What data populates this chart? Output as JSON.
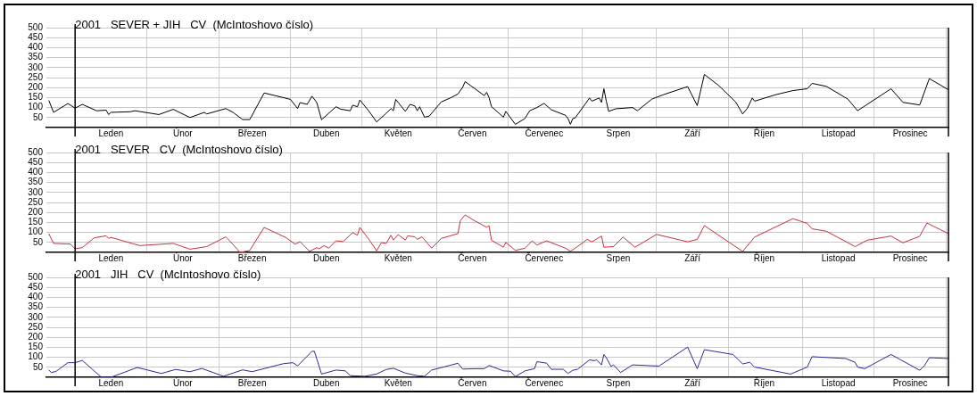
{
  "chart_data": [
    {
      "type": "line",
      "title": "2001   SEVER + JIH   CV  (McIntoshovo číslo)",
      "ylim": [
        0,
        500
      ],
      "yticks": [
        50,
        100,
        150,
        200,
        250,
        300,
        350,
        400,
        450,
        500
      ],
      "grid": true,
      "legend": false,
      "categories": [
        null,
        null,
        null,
        null,
        null,
        null,
        null,
        null,
        null,
        null,
        null,
        null,
        null,
        null,
        null,
        null,
        null,
        null,
        null,
        null,
        null,
        null,
        null,
        null,
        null,
        null,
        null,
        "Leden",
        null,
        null,
        null,
        null,
        null,
        null,
        null,
        null,
        null,
        null,
        null,
        null,
        null,
        null,
        null,
        null,
        null,
        null,
        null,
        null,
        null,
        null,
        null,
        null,
        null,
        null,
        null,
        null,
        null,
        "Únor",
        null,
        null,
        null,
        null,
        null,
        null,
        null,
        null,
        null,
        null,
        null,
        null,
        null,
        null,
        null,
        null,
        null,
        null,
        null,
        null,
        null,
        null,
        null,
        null,
        null,
        null,
        null,
        null,
        "Březen",
        null,
        null,
        null,
        null,
        null,
        null,
        null,
        null,
        null,
        null,
        null,
        null,
        null,
        null,
        null,
        null,
        null,
        null,
        null,
        null,
        null,
        null,
        null,
        null,
        null,
        null,
        null,
        null,
        null,
        null,
        "Duben",
        null,
        null,
        null,
        null,
        null,
        null,
        null,
        null,
        null,
        null,
        null,
        null,
        null,
        null,
        null,
        null,
        null,
        null,
        null,
        null,
        null,
        null,
        null,
        null,
        null,
        null,
        null,
        null,
        null,
        "Květen",
        null,
        null,
        null,
        null,
        null,
        null,
        null,
        null,
        null,
        null,
        null,
        null,
        null,
        null,
        null,
        null,
        null,
        null,
        null,
        null,
        null,
        null,
        null,
        null,
        null,
        null,
        null,
        null,
        null,
        null,
        "Červen",
        null,
        null,
        null,
        null,
        null,
        null,
        null,
        null,
        null,
        null,
        null,
        null,
        null,
        null,
        null,
        null,
        null,
        null,
        null,
        null,
        null,
        null,
        null,
        null,
        null,
        null,
        null,
        null,
        null,
        "Červenec",
        null,
        null,
        null,
        null,
        null,
        null,
        null,
        null,
        null,
        null,
        null,
        null,
        null,
        null,
        null,
        null,
        null,
        null,
        null,
        null,
        null,
        null,
        null,
        null,
        null,
        null,
        null,
        null,
        null,
        null,
        "Srpen",
        null,
        null,
        null,
        null,
        null,
        null,
        null,
        null,
        null,
        null,
        null,
        null,
        null,
        null,
        null,
        null,
        null,
        null,
        null,
        null,
        null,
        null,
        null,
        null,
        null,
        null,
        null,
        null,
        null,
        null,
        "Září",
        null,
        null,
        null,
        null,
        null,
        null,
        null,
        null,
        null,
        null,
        null,
        null,
        null,
        null,
        null,
        null,
        null,
        null,
        null,
        null,
        null,
        null,
        null,
        null,
        null,
        null,
        null,
        null,
        null,
        "Říjen",
        null,
        null,
        null,
        null,
        null,
        null,
        null,
        null,
        null,
        null,
        null,
        null,
        null,
        null,
        null,
        null,
        null,
        null,
        null,
        null,
        null,
        null,
        null,
        null,
        null,
        null,
        null,
        null,
        null,
        null,
        "Listopad",
        null,
        null,
        null,
        null,
        null,
        null,
        null,
        null,
        null,
        null,
        null,
        null,
        null,
        null,
        null,
        null,
        null,
        null,
        null,
        null,
        null,
        null,
        null,
        null,
        null,
        null,
        null,
        null,
        null,
        "Prosinec",
        null,
        null,
        null,
        null,
        null,
        null,
        null,
        null,
        null,
        null,
        null,
        null,
        null,
        null,
        null,
        null
      ],
      "series": [
        {
          "color": "#000000",
          "values": [
            null,
            136,
            null,
            76,
            null,
            null,
            null,
            null,
            null,
            120,
            null,
            null,
            97,
            null,
            null,
            116,
            null,
            null,
            null,
            null,
            null,
            84,
            null,
            null,
            null,
            87,
            65,
            76,
            null,
            null,
            null,
            null,
            null,
            null,
            null,
            79,
            null,
            84,
            null,
            null,
            null,
            null,
            null,
            null,
            null,
            null,
            null,
            65,
            null,
            null,
            null,
            null,
            null,
            91,
            null,
            null,
            null,
            null,
            null,
            null,
            50,
            null,
            null,
            null,
            null,
            null,
            76,
            68,
            null,
            null,
            null,
            null,
            null,
            null,
            null,
            95,
            null,
            null,
            76,
            null,
            null,
            null,
            40,
            null,
            null,
            40,
            null,
            null,
            null,
            null,
            null,
            173,
            null,
            null,
            null,
            null,
            null,
            null,
            null,
            null,
            null,
            null,
            141,
            null,
            null,
            95,
            125,
            null,
            null,
            116,
            null,
            157,
            null,
            125,
            null,
            39,
            null,
            null,
            null,
            null,
            null,
            104,
            null,
            92,
            null,
            null,
            null,
            84,
            112,
            null,
            104,
            138,
            null,
            null,
            null,
            79,
            null,
            null,
            28,
            null,
            null,
            null,
            71,
            null,
            95,
            84,
            141,
            null,
            null,
            null,
            81,
            null,
            116,
            null,
            108,
            84,
            104,
            null,
            52,
            null,
            57,
            null,
            null,
            null,
            null,
            128,
            null,
            null,
            null,
            149,
            null,
            null,
            168,
            null,
            202,
            230,
            null,
            null,
            null,
            null,
            null,
            null,
            null,
            160,
            176,
            150,
            105,
            null,
            null,
            null,
            null,
            52,
            81,
            null,
            null,
            null,
            16,
            null,
            null,
            null,
            45,
            null,
            84,
            null,
            null,
            100,
            null,
            null,
            121,
            null,
            null,
            89,
            null,
            null,
            null,
            null,
            null,
            61,
            45,
            16,
            45,
            48,
            null,
            null,
            null,
            null,
            null,
            148,
            132,
            null,
            null,
            148,
            126,
            194,
            132,
            81,
            null,
            null,
            94,
            null,
            null,
            null,
            null,
            null,
            null,
            100,
            null,
            84,
            null,
            null,
            null,
            null,
            null,
            142,
            null,
            null,
            null,
            null,
            165,
            null,
            null,
            null,
            null,
            null,
            null,
            null,
            null,
            null,
            205,
            null,
            null,
            null,
            110,
            null,
            null,
            266,
            null,
            null,
            null,
            null,
            null,
            210,
            null,
            null,
            null,
            null,
            null,
            null,
            129,
            null,
            null,
            68,
            null,
            97,
            null,
            148,
            132,
            null,
            null,
            null,
            null,
            null,
            null,
            null,
            null,
            165,
            null,
            null,
            null,
            null,
            null,
            null,
            185,
            null,
            null,
            null,
            null,
            null,
            194,
            null,
            221,
            null,
            null,
            null,
            null,
            null,
            206,
            null,
            null,
            null,
            null,
            null,
            null,
            null,
            null,
            142,
            null,
            null,
            null,
            84,
            null,
            null,
            null,
            null,
            null,
            null,
            null,
            null,
            null,
            null,
            null,
            null,
            null,
            194,
            null,
            null,
            null,
            null,
            126,
            null,
            null,
            null,
            null,
            null,
            null,
            113,
            null,
            null,
            null,
            245,
            null,
            null,
            null,
            null,
            null,
            null,
            null,
            189
          ]
        }
      ]
    },
    {
      "type": "line",
      "title": "2001   SEVER   CV  (McIntoshovo číslo)",
      "ylim": [
        0,
        500
      ],
      "yticks": [
        50,
        100,
        150,
        200,
        250,
        300,
        350,
        400,
        450,
        500
      ],
      "grid": true,
      "legend": false,
      "categories": [
        null,
        null,
        null,
        null,
        null,
        null,
        null,
        null,
        null,
        null,
        null,
        null,
        null,
        null,
        null,
        null,
        null,
        null,
        null,
        null,
        null,
        null,
        null,
        null,
        null,
        null,
        null,
        "Leden",
        null,
        null,
        null,
        null,
        null,
        null,
        null,
        null,
        null,
        null,
        null,
        null,
        null,
        null,
        null,
        null,
        null,
        null,
        null,
        null,
        null,
        null,
        null,
        null,
        null,
        null,
        null,
        null,
        null,
        "Únor",
        null,
        null,
        null,
        null,
        null,
        null,
        null,
        null,
        null,
        null,
        null,
        null,
        null,
        null,
        null,
        null,
        null,
        null,
        null,
        null,
        null,
        null,
        null,
        null,
        null,
        null,
        null,
        null,
        "Březen",
        null,
        null,
        null,
        null,
        null,
        null,
        null,
        null,
        null,
        null,
        null,
        null,
        null,
        null,
        null,
        null,
        null,
        null,
        null,
        null,
        null,
        null,
        null,
        null,
        null,
        null,
        null,
        null,
        null,
        null,
        "Duben",
        null,
        null,
        null,
        null,
        null,
        null,
        null,
        null,
        null,
        null,
        null,
        null,
        null,
        null,
        null,
        null,
        null,
        null,
        null,
        null,
        null,
        null,
        null,
        null,
        null,
        null,
        null,
        null,
        null,
        "Květen",
        null,
        null,
        null,
        null,
        null,
        null,
        null,
        null,
        null,
        null,
        null,
        null,
        null,
        null,
        null,
        null,
        null,
        null,
        null,
        null,
        null,
        null,
        null,
        null,
        null,
        null,
        null,
        null,
        null,
        null,
        "Červen",
        null,
        null,
        null,
        null,
        null,
        null,
        null,
        null,
        null,
        null,
        null,
        null,
        null,
        null,
        null,
        null,
        null,
        null,
        null,
        null,
        null,
        null,
        null,
        null,
        null,
        null,
        null,
        null,
        null,
        "Červenec",
        null,
        null,
        null,
        null,
        null,
        null,
        null,
        null,
        null,
        null,
        null,
        null,
        null,
        null,
        null,
        null,
        null,
        null,
        null,
        null,
        null,
        null,
        null,
        null,
        null,
        null,
        null,
        null,
        null,
        null,
        "Srpen",
        null,
        null,
        null,
        null,
        null,
        null,
        null,
        null,
        null,
        null,
        null,
        null,
        null,
        null,
        null,
        null,
        null,
        null,
        null,
        null,
        null,
        null,
        null,
        null,
        null,
        null,
        null,
        null,
        null,
        null,
        "Září",
        null,
        null,
        null,
        null,
        null,
        null,
        null,
        null,
        null,
        null,
        null,
        null,
        null,
        null,
        null,
        null,
        null,
        null,
        null,
        null,
        null,
        null,
        null,
        null,
        null,
        null,
        null,
        null,
        null,
        "Říjen",
        null,
        null,
        null,
        null,
        null,
        null,
        null,
        null,
        null,
        null,
        null,
        null,
        null,
        null,
        null,
        null,
        null,
        null,
        null,
        null,
        null,
        null,
        null,
        null,
        null,
        null,
        null,
        null,
        null,
        null,
        "Listopad",
        null,
        null,
        null,
        null,
        null,
        null,
        null,
        null,
        null,
        null,
        null,
        null,
        null,
        null,
        null,
        null,
        null,
        null,
        null,
        null,
        null,
        null,
        null,
        null,
        null,
        null,
        null,
        null,
        null,
        "Prosinec",
        null,
        null,
        null,
        null,
        null,
        null,
        null,
        null,
        null,
        null,
        null,
        null,
        null,
        null,
        null,
        null
      ],
      "series": [
        {
          "color": "#c8303a",
          "values": [
            null,
            94,
            null,
            45,
            null,
            null,
            null,
            null,
            null,
            null,
            42,
            null,
            18,
            null,
            null,
            24,
            null,
            null,
            null,
            null,
            73,
            null,
            null,
            null,
            null,
            83,
            70,
            75,
            null,
            null,
            null,
            null,
            null,
            null,
            null,
            null,
            null,
            null,
            null,
            34,
            null,
            null,
            null,
            null,
            null,
            null,
            null,
            null,
            null,
            null,
            null,
            null,
            null,
            45,
            null,
            null,
            null,
            null,
            null,
            null,
            16,
            null,
            null,
            null,
            null,
            null,
            null,
            29,
            null,
            null,
            null,
            null,
            null,
            null,
            null,
            78,
            null,
            null,
            null,
            null,
            null,
            0,
            null,
            null,
            null,
            10,
            null,
            null,
            null,
            null,
            null,
            125,
            null,
            null,
            null,
            null,
            null,
            null,
            null,
            null,
            75,
            null,
            null,
            null,
            41,
            null,
            54,
            null,
            null,
            null,
            5,
            null,
            null,
            24,
            18,
            null,
            34,
            null,
            21,
            null,
            null,
            58,
            null,
            null,
            54,
            null,
            null,
            null,
            99,
            null,
            86,
            125,
            null,
            null,
            null,
            62,
            null,
            null,
            8,
            null,
            49,
            null,
            45,
            null,
            86,
            62,
            null,
            89,
            null,
            null,
            62,
            83,
            null,
            null,
            78,
            65,
            null,
            78,
            null,
            null,
            null,
            21,
            null,
            null,
            null,
            70,
            null,
            null,
            null,
            null,
            null,
            null,
            94,
            159,
            null,
            188,
            null,
            null,
            null,
            158,
            null,
            null,
            null,
            null,
            126,
            134,
            61,
            null,
            null,
            null,
            null,
            26,
            50,
            null,
            null,
            null,
            10,
            null,
            null,
            null,
            21,
            null,
            null,
            58,
            null,
            37,
            null,
            null,
            null,
            58,
            null,
            null,
            null,
            null,
            null,
            null,
            null,
            21,
            null,
            5,
            null,
            21,
            null,
            null,
            null,
            null,
            65,
            null,
            53,
            null,
            null,
            null,
            82,
            26,
            null,
            null,
            null,
            29,
            null,
            null,
            null,
            77,
            null,
            null,
            null,
            null,
            26,
            null,
            null,
            null,
            null,
            null,
            null,
            null,
            null,
            90,
            null,
            null,
            null,
            null,
            null,
            null,
            null,
            null,
            null,
            null,
            null,
            null,
            53,
            null,
            null,
            null,
            65,
            null,
            null,
            134,
            null,
            null,
            null,
            null,
            null,
            null,
            null,
            null,
            null,
            null,
            null,
            null,
            null,
            null,
            null,
            5,
            null,
            null,
            null,
            null,
            77,
            null,
            null,
            null,
            null,
            null,
            null,
            null,
            null,
            null,
            null,
            null,
            null,
            null,
            null,
            null,
            169,
            null,
            null,
            null,
            null,
            null,
            145,
            null,
            118,
            null,
            null,
            null,
            null,
            null,
            106,
            null,
            null,
            null,
            null,
            null,
            null,
            null,
            null,
            null,
            null,
            null,
            29,
            null,
            null,
            null,
            null,
            61,
            null,
            null,
            null,
            null,
            null,
            null,
            null,
            null,
            null,
            82,
            null,
            null,
            null,
            null,
            48,
            null,
            null,
            null,
            null,
            null,
            null,
            81,
            null,
            null,
            147,
            null,
            null,
            null,
            null,
            null,
            null,
            null,
            null,
            94
          ]
        }
      ]
    },
    {
      "type": "line",
      "title": "2001   JIH   CV  (McIntoshovo číslo)",
      "ylim": [
        0,
        500
      ],
      "yticks": [
        50,
        100,
        150,
        200,
        250,
        300,
        350,
        400,
        450,
        500
      ],
      "grid": true,
      "legend": false,
      "categories": [
        null,
        null,
        null,
        null,
        null,
        null,
        null,
        null,
        null,
        null,
        null,
        null,
        null,
        null,
        null,
        null,
        null,
        null,
        null,
        null,
        null,
        null,
        null,
        null,
        null,
        null,
        null,
        "Leden",
        null,
        null,
        null,
        null,
        null,
        null,
        null,
        null,
        null,
        null,
        null,
        null,
        null,
        null,
        null,
        null,
        null,
        null,
        null,
        null,
        null,
        null,
        null,
        null,
        null,
        null,
        null,
        null,
        null,
        "Únor",
        null,
        null,
        null,
        null,
        null,
        null,
        null,
        null,
        null,
        null,
        null,
        null,
        null,
        null,
        null,
        null,
        null,
        null,
        null,
        null,
        null,
        null,
        null,
        null,
        null,
        null,
        null,
        null,
        "Březen",
        null,
        null,
        null,
        null,
        null,
        null,
        null,
        null,
        null,
        null,
        null,
        null,
        null,
        null,
        null,
        null,
        null,
        null,
        null,
        null,
        null,
        null,
        null,
        null,
        null,
        null,
        null,
        null,
        null,
        null,
        "Duben",
        null,
        null,
        null,
        null,
        null,
        null,
        null,
        null,
        null,
        null,
        null,
        null,
        null,
        null,
        null,
        null,
        null,
        null,
        null,
        null,
        null,
        null,
        null,
        null,
        null,
        null,
        null,
        null,
        null,
        "Květen",
        null,
        null,
        null,
        null,
        null,
        null,
        null,
        null,
        null,
        null,
        null,
        null,
        null,
        null,
        null,
        null,
        null,
        null,
        null,
        null,
        null,
        null,
        null,
        null,
        null,
        null,
        null,
        null,
        null,
        null,
        "Červen",
        null,
        null,
        null,
        null,
        null,
        null,
        null,
        null,
        null,
        null,
        null,
        null,
        null,
        null,
        null,
        null,
        null,
        null,
        null,
        null,
        null,
        null,
        null,
        null,
        null,
        null,
        null,
        null,
        null,
        "Červenec",
        null,
        null,
        null,
        null,
        null,
        null,
        null,
        null,
        null,
        null,
        null,
        null,
        null,
        null,
        null,
        null,
        null,
        null,
        null,
        null,
        null,
        null,
        null,
        null,
        null,
        null,
        null,
        null,
        null,
        null,
        "Srpen",
        null,
        null,
        null,
        null,
        null,
        null,
        null,
        null,
        null,
        null,
        null,
        null,
        null,
        null,
        null,
        null,
        null,
        null,
        null,
        null,
        null,
        null,
        null,
        null,
        null,
        null,
        null,
        null,
        null,
        null,
        "Září",
        null,
        null,
        null,
        null,
        null,
        null,
        null,
        null,
        null,
        null,
        null,
        null,
        null,
        null,
        null,
        null,
        null,
        null,
        null,
        null,
        null,
        null,
        null,
        null,
        null,
        null,
        null,
        null,
        null,
        "Říjen",
        null,
        null,
        null,
        null,
        null,
        null,
        null,
        null,
        null,
        null,
        null,
        null,
        null,
        null,
        null,
        null,
        null,
        null,
        null,
        null,
        null,
        null,
        null,
        null,
        null,
        null,
        null,
        null,
        null,
        null,
        "Listopad",
        null,
        null,
        null,
        null,
        null,
        null,
        null,
        null,
        null,
        null,
        null,
        null,
        null,
        null,
        null,
        null,
        null,
        null,
        null,
        null,
        null,
        null,
        null,
        null,
        null,
        null,
        null,
        null,
        null,
        "Prosinec",
        null,
        null,
        null,
        null,
        null,
        null,
        null,
        null,
        null,
        null,
        null,
        null,
        null,
        null,
        null,
        null
      ],
      "series": [
        {
          "color": "#2a2a96",
          "values": [
            null,
            37,
            24,
            null,
            29,
            null,
            null,
            null,
            null,
            73,
            null,
            null,
            73,
            null,
            null,
            84,
            null,
            null,
            null,
            null,
            null,
            null,
            null,
            0,
            null,
            null,
            null,
            0,
            null,
            null,
            null,
            null,
            null,
            null,
            null,
            null,
            null,
            null,
            49,
            null,
            null,
            null,
            null,
            null,
            null,
            null,
            null,
            null,
            19,
            null,
            null,
            null,
            null,
            null,
            39,
            null,
            null,
            null,
            null,
            null,
            28,
            null,
            null,
            null,
            null,
            44,
            null,
            null,
            null,
            null,
            null,
            null,
            null,
            null,
            5,
            null,
            null,
            null,
            null,
            null,
            null,
            null,
            37,
            null,
            null,
            null,
            28,
            null,
            null,
            null,
            null,
            null,
            null,
            null,
            null,
            null,
            null,
            null,
            null,
            68,
            null,
            null,
            null,
            73,
            null,
            57,
            null,
            null,
            null,
            null,
            null,
            130,
            130,
            null,
            null,
            16,
            null,
            null,
            null,
            null,
            null,
            36,
            null,
            null,
            null,
            32,
            null,
            8,
            null,
            null,
            null,
            null,
            null,
            5,
            null,
            null,
            null,
            null,
            16,
            null,
            null,
            null,
            39,
            null,
            null,
            45,
            null,
            null,
            null,
            null,
            21,
            null,
            null,
            null,
            null,
            8,
            null,
            null,
            5,
            null,
            null,
            36,
            null,
            null,
            null,
            null,
            null,
            null,
            null,
            null,
            null,
            null,
            70,
            null,
            41,
            null,
            null,
            null,
            null,
            43,
            null,
            null,
            null,
            43,
            null,
            59,
            null,
            null,
            null,
            null,
            null,
            32,
            null,
            null,
            30,
            null,
            3,
            null,
            null,
            null,
            32,
            null,
            null,
            null,
            43,
            78,
            null,
            null,
            null,
            71,
            null,
            40,
            null,
            null,
            null,
            null,
            40,
            null,
            19,
            null,
            35,
            null,
            40,
            null,
            null,
            null,
            null,
            87,
            null,
            83,
            87,
            null,
            62,
            114,
            98,
            null,
            54,
            62,
            null,
            null,
            24,
            null,
            null,
            null,
            null,
            62,
            null,
            null,
            null,
            null,
            null,
            null,
            null,
            null,
            null,
            null,
            56,
            null,
            null,
            null,
            null,
            null,
            null,
            null,
            null,
            null,
            null,
            null,
            151,
            null,
            null,
            null,
            43,
            null,
            null,
            138,
            null,
            null,
            null,
            null,
            null,
            null,
            null,
            null,
            null,
            null,
            null,
            114,
            null,
            null,
            null,
            67,
            null,
            null,
            75,
            null,
            51,
            null,
            null,
            null,
            null,
            null,
            null,
            null,
            null,
            null,
            null,
            null,
            null,
            null,
            null,
            16,
            null,
            null,
            null,
            null,
            null,
            null,
            51,
            null,
            103,
            null,
            null,
            null,
            null,
            null,
            null,
            null,
            null,
            null,
            null,
            null,
            null,
            null,
            94,
            null,
            null,
            null,
            75,
            51,
            null,
            null,
            43,
            null,
            null,
            null,
            null,
            null,
            null,
            null,
            null,
            null,
            null,
            114,
            null,
            null,
            null,
            null,
            null,
            null,
            null,
            null,
            null,
            null,
            null,
            35,
            null,
            59,
            null,
            98,
            null,
            null,
            null,
            null,
            null,
            null,
            null,
            94
          ]
        }
      ]
    }
  ]
}
